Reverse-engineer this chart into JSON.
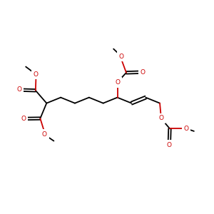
{
  "bg_color": "#ffffff",
  "bond_color": "#000000",
  "heteroatom_color": "#cc0000",
  "bond_lw": 1.2,
  "font_size": 6.5,
  "fig_size": [
    3.0,
    3.0
  ],
  "dpi": 100,
  "xlim": [
    0,
    10
  ],
  "ylim": [
    0,
    10
  ]
}
